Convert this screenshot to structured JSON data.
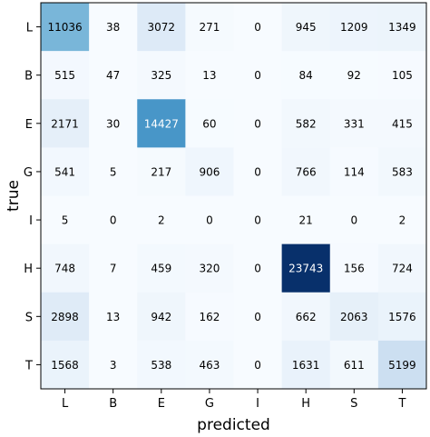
{
  "chart_data": {
    "type": "heatmap",
    "title": "",
    "xlabel": "predicted",
    "ylabel": "true",
    "x_categories": [
      "L",
      "B",
      "E",
      "G",
      "I",
      "H",
      "S",
      "T"
    ],
    "y_categories": [
      "L",
      "B",
      "E",
      "G",
      "I",
      "H",
      "S",
      "T"
    ],
    "values": [
      [
        11036,
        38,
        3072,
        271,
        0,
        945,
        1209,
        1349
      ],
      [
        515,
        47,
        325,
        13,
        0,
        84,
        92,
        105
      ],
      [
        2171,
        30,
        14427,
        60,
        0,
        582,
        331,
        415
      ],
      [
        541,
        5,
        217,
        906,
        0,
        766,
        114,
        583
      ],
      [
        5,
        0,
        2,
        0,
        0,
        21,
        0,
        2
      ],
      [
        748,
        7,
        459,
        320,
        0,
        23743,
        156,
        724
      ],
      [
        2898,
        13,
        942,
        162,
        0,
        662,
        2063,
        1576
      ],
      [
        1568,
        3,
        538,
        463,
        0,
        1631,
        611,
        5199
      ]
    ],
    "colormap": "Blues",
    "color_min": 0,
    "color_max": 23743,
    "grid": false,
    "legend": "none"
  }
}
